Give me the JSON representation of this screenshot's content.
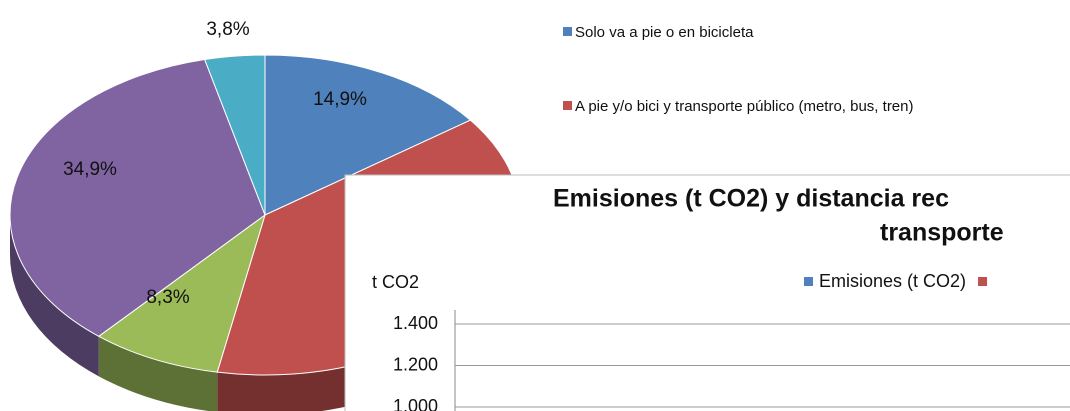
{
  "chart_data": [
    {
      "type": "pie",
      "categories": [
        "Solo va a pie o en bicicleta",
        "A pie y/o bici y transporte público (metro, bus, tren)",
        null,
        null,
        null
      ],
      "values": [
        14.9,
        38.1,
        8.3,
        34.9,
        3.8
      ],
      "value_labels": [
        "14,9%",
        null,
        "8,3%",
        "34,9%",
        "3,8%"
      ],
      "colors": [
        "#4f81bd",
        "#c0504d",
        "#9bbb59",
        "#8064a2",
        "#4bacc6"
      ],
      "legend": "right"
    },
    {
      "type": "bar",
      "title_lines": [
        "Emisiones (t CO2) y distancia rec",
        "transporte"
      ],
      "y_label": "t CO2",
      "series": [
        {
          "name": "Emisiones (t CO2)",
          "color": "#4f81bd"
        },
        {
          "name": null,
          "color": "#c0504d"
        }
      ],
      "ylim": [
        0,
        1400
      ],
      "yticks": [
        {
          "value": 1400,
          "label": "1.400"
        },
        {
          "value": 1200,
          "label": "1.200"
        },
        {
          "value": 1000,
          "label": "1.000"
        }
      ],
      "grid": true
    }
  ]
}
